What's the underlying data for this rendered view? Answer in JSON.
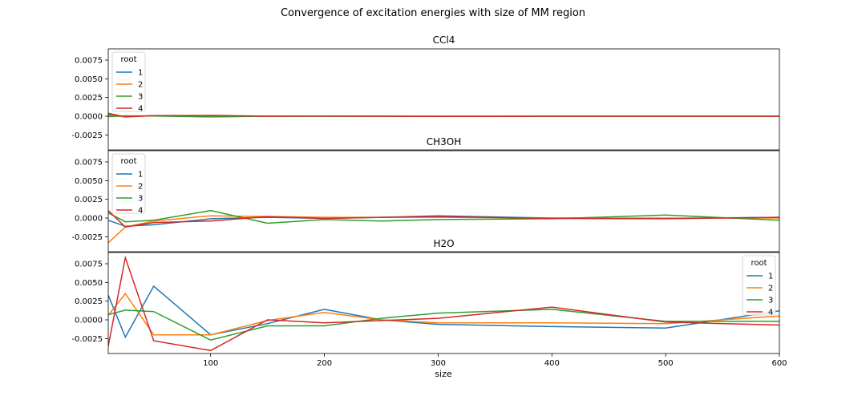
{
  "figure": {
    "suptitle": "Convergence of excitation energies with size of MM region",
    "xlabel": "size",
    "legend_title": "root",
    "colors": {
      "1": "#1f77b4",
      "2": "#ff7f0e",
      "3": "#2ca02c",
      "4": "#d62728"
    }
  },
  "chart_data": [
    {
      "type": "line",
      "title": "CCl4",
      "xlabel": "",
      "ylabel": "",
      "xlim": [
        10,
        600
      ],
      "ylim": [
        -0.0045,
        0.009
      ],
      "yticks": [
        "0.0075",
        "0.0050",
        "0.0025",
        "0.0000",
        "-0.0025"
      ],
      "ytick_values": [
        0.0075,
        0.005,
        0.0025,
        0.0,
        -0.0025
      ],
      "xticks": [],
      "grid": false,
      "legend": {
        "title": "root",
        "placement": "upper left",
        "entries": [
          "1",
          "2",
          "3",
          "4"
        ]
      },
      "x": [
        10,
        25,
        50,
        100,
        150,
        200,
        250,
        300,
        400,
        500,
        600
      ],
      "series": [
        {
          "name": "1",
          "values": [
            0.0002,
            -5e-05,
            8e-05,
            5e-05,
            0.0,
            0.0,
            0.0,
            -3e-05,
            0.0,
            0.0,
            0.0
          ]
        },
        {
          "name": "2",
          "values": [
            0.0001,
            -0.0001,
            5e-05,
            3e-05,
            0.0,
            0.0,
            0.0,
            0.0,
            0.0,
            0.0,
            0.0
          ]
        },
        {
          "name": "3",
          "values": [
            -5e-05,
            5e-05,
            2e-05,
            -0.0001,
            0.0,
            0.0,
            0.0,
            0.0,
            0.0,
            0.0,
            0.0
          ]
        },
        {
          "name": "4",
          "values": [
            0.0004,
            -8e-05,
            8e-05,
            0.00012,
            0.0,
            3e-05,
            0.0,
            -2e-05,
            0.0,
            0.0,
            0.0
          ]
        }
      ]
    },
    {
      "type": "line",
      "title": "CH3OH",
      "xlabel": "",
      "ylabel": "",
      "xlim": [
        10,
        600
      ],
      "ylim": [
        -0.0045,
        0.009
      ],
      "yticks": [
        "0.0075",
        "0.0050",
        "0.0025",
        "0.0000",
        "-0.0025"
      ],
      "ytick_values": [
        0.0075,
        0.005,
        0.0025,
        0.0,
        -0.0025
      ],
      "xticks": [],
      "grid": false,
      "legend": {
        "title": "root",
        "placement": "upper left",
        "entries": [
          "1",
          "2",
          "3",
          "4"
        ]
      },
      "x": [
        10,
        25,
        50,
        100,
        150,
        200,
        250,
        300,
        400,
        500,
        600
      ],
      "series": [
        {
          "name": "1",
          "values": [
            -0.0003,
            -0.0011,
            -0.0009,
            -0.0001,
            0.0001,
            -5e-05,
            0.0001,
            0.0003,
            0.0,
            -5e-05,
            0.0001
          ]
        },
        {
          "name": "2",
          "values": [
            -0.0033,
            -0.0012,
            -0.0004,
            0.0003,
            0.0002,
            0.0001,
            0.0001,
            0.0001,
            0.0,
            0.0,
            0.0
          ]
        },
        {
          "name": "3",
          "values": [
            0.0007,
            -0.0005,
            -0.0003,
            0.001,
            -0.0007,
            -0.0002,
            -0.0004,
            -0.0002,
            -0.0001,
            0.0004,
            -0.0003
          ]
        },
        {
          "name": "4",
          "values": [
            0.001,
            -0.0012,
            -0.0006,
            -0.0004,
            0.0002,
            -5e-05,
            0.0001,
            0.0002,
            -5e-05,
            -0.0001,
            0.0001
          ]
        }
      ]
    },
    {
      "type": "line",
      "title": "H2O",
      "xlabel": "size",
      "ylabel": "",
      "xlim": [
        10,
        600
      ],
      "ylim": [
        -0.0045,
        0.009
      ],
      "yticks": [
        "0.0075",
        "0.0050",
        "0.0025",
        "0.0000",
        "-0.0025"
      ],
      "ytick_values": [
        0.0075,
        0.005,
        0.0025,
        0.0,
        -0.0025
      ],
      "xticks": [
        "100",
        "200",
        "300",
        "400",
        "500",
        "600"
      ],
      "xtick_values": [
        100,
        200,
        300,
        400,
        500,
        600
      ],
      "grid": false,
      "legend": {
        "title": "root",
        "placement": "upper right",
        "entries": [
          "1",
          "2",
          "3",
          "4"
        ]
      },
      "x": [
        10,
        25,
        50,
        100,
        150,
        200,
        250,
        300,
        400,
        500,
        600
      ],
      "series": [
        {
          "name": "1",
          "values": [
            0.0033,
            -0.0023,
            0.0045,
            -0.002,
            -0.0005,
            0.0014,
            0.0,
            -0.0006,
            -0.0009,
            -0.0011,
            0.0012
          ]
        },
        {
          "name": "2",
          "values": [
            0.0006,
            0.0035,
            -0.002,
            -0.002,
            -0.0001,
            0.001,
            0.0,
            -0.0004,
            -0.0004,
            -0.0005,
            0.0005
          ]
        },
        {
          "name": "3",
          "values": [
            0.0007,
            0.0013,
            0.0011,
            -0.0027,
            -0.0008,
            -0.0008,
            0.0002,
            0.0009,
            0.0014,
            -0.0002,
            -0.0002
          ]
        },
        {
          "name": "4",
          "values": [
            -0.0035,
            0.0083,
            -0.0028,
            -0.0041,
            0.0,
            -0.0004,
            -0.0001,
            0.0002,
            0.0017,
            -0.0003,
            -0.0007
          ]
        }
      ]
    }
  ]
}
